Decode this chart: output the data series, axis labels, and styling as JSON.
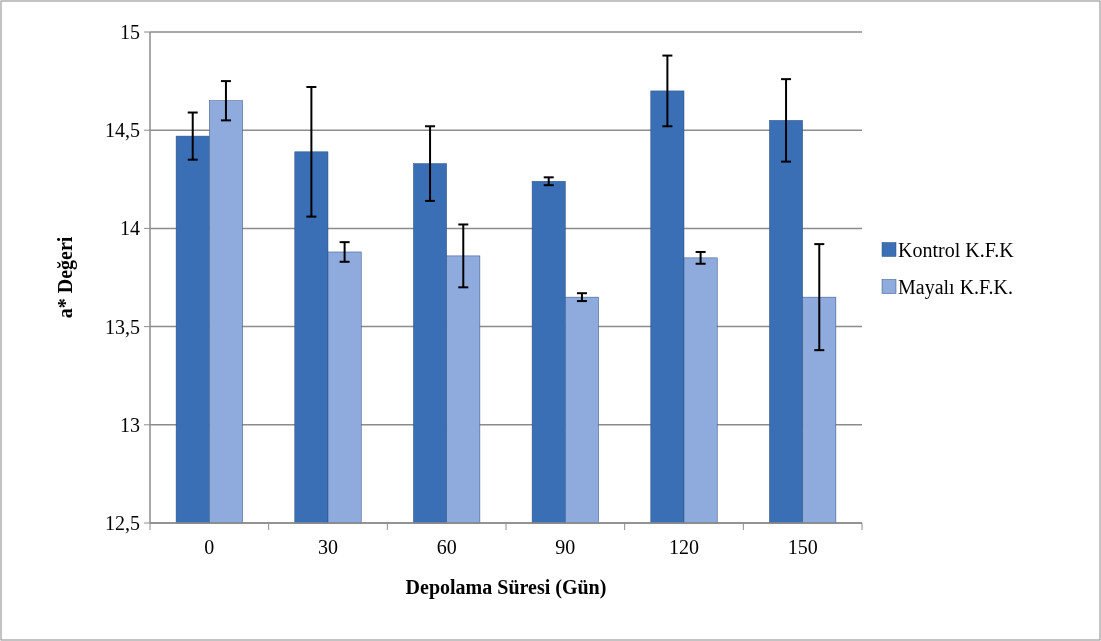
{
  "chart_data": {
    "type": "bar",
    "xlabel": "Depolama Süresi (Gün)",
    "ylabel": "a* Değeri",
    "categories": [
      "0",
      "30",
      "60",
      "90",
      "120",
      "150"
    ],
    "series": [
      {
        "name": "Kontrol K.F.K",
        "color": "#3a6fb5",
        "values": [
          14.47,
          14.39,
          14.33,
          14.24,
          14.7,
          14.55
        ],
        "errors": [
          0.12,
          0.33,
          0.19,
          0.02,
          0.18,
          0.21
        ]
      },
      {
        "name": "Mayalı K.F.K.",
        "color": "#8faadc",
        "values": [
          14.65,
          13.88,
          13.86,
          13.65,
          13.85,
          13.65
        ],
        "errors": [
          0.1,
          0.05,
          0.16,
          0.02,
          0.03,
          0.27
        ]
      }
    ],
    "ylim": [
      12.5,
      15
    ],
    "yticks": [
      {
        "value": 12.5,
        "label": "12,5"
      },
      13,
      {
        "value": 13.5,
        "label": "13,5"
      },
      14,
      {
        "value": 14.5,
        "label": "14,5"
      },
      15
    ],
    "grid": "y",
    "legend": "right"
  }
}
